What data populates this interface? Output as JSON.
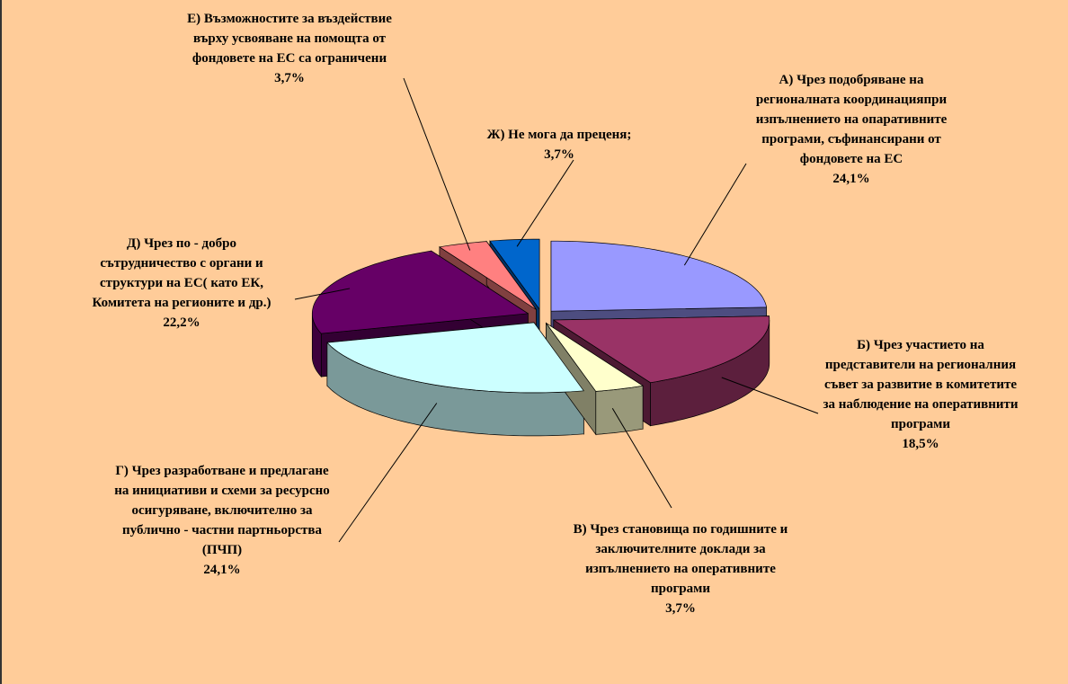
{
  "chart_data": {
    "type": "pie",
    "categories": [
      "А) Чрез подобряване на регионалната координацияпри изпълнението на опаративните програми, съфинансирани от фондовете на ЕС",
      "Б) Чрез участието на представители на регионалния съвет за развитие в комитетите за наблюдение на оперативнити програми",
      "В) Чрез становища по годишните и заключителните доклади за изпълнението на оперативните програми",
      "Г) Чрез разработване и предлагане на инициативи и схеми за ресурсно осигуряване, включително за публично - частни партньорства (ПЧП)",
      "Д) Чрез по - добро сътрудничество с органи и структури на ЕС( като ЕК, Комитета на регионите и др.)",
      "Е) Възможностите за въздействие върху усвояване на помощта от фондовете на ЕС  са ограничени",
      "Ж) Не мога да преценя;"
    ],
    "values": [
      24.1,
      18.5,
      3.7,
      24.1,
      22.2,
      3.7,
      3.7
    ],
    "value_labels": [
      "24,1%",
      "18,5%",
      "3,7%",
      "24,1%",
      "22,2%",
      "3,7%",
      "3,7%"
    ],
    "colors": [
      "#9999ff",
      "#993366",
      "#ffffcc",
      "#ccffff",
      "#660066",
      "#ff8080",
      "#0066cc"
    ]
  }
}
